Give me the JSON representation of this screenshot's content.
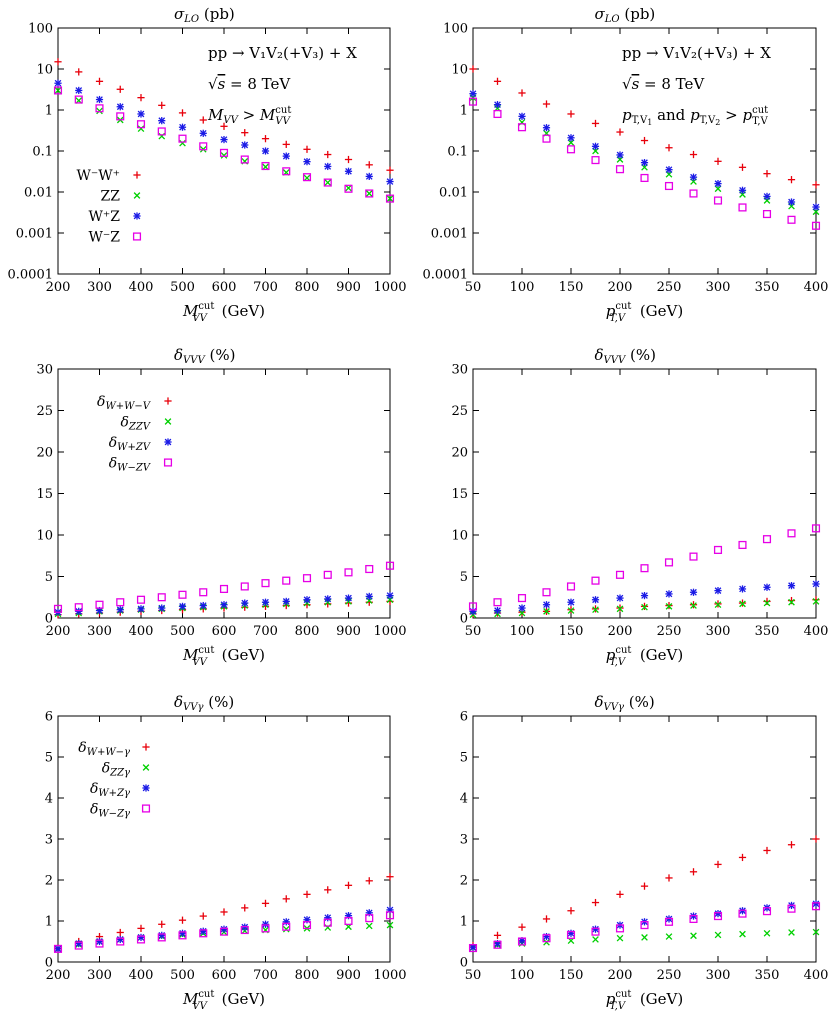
{
  "figure": {
    "background": "#ffffff",
    "colors": {
      "WW": "#e8000b",
      "ZZ": "#00d000",
      "WZp": "#1a1ae6",
      "WZm": "#e600e6"
    }
  },
  "chart_data": [
    {
      "id": "p1",
      "type": "scatter",
      "yscale": "log",
      "title_sym": "σ",
      "title_sub": "LO",
      "title_unit": "(pb)",
      "xlabel": "M",
      "xlabel_sub": "VV",
      "xlabel_sup": "cut",
      "xlabel_unit": "(GeV)",
      "xlim": [
        200,
        1000
      ],
      "ylim": [
        0.0001,
        100
      ],
      "xticks": [
        200,
        300,
        400,
        500,
        600,
        700,
        800,
        900,
        1000
      ],
      "xtick_labels": [
        "200",
        "300",
        "400",
        "500",
        "600",
        "700",
        "800",
        "900",
        "1000"
      ],
      "yticks": [
        0.0001,
        0.001,
        0.01,
        0.1,
        1,
        10,
        100
      ],
      "ytick_labels": [
        "0.0001",
        "0.001",
        "0.01",
        "0.1",
        "1",
        "10",
        "100"
      ],
      "annotations": [
        "pp → V₁V₂(+V₃) + X",
        "√s = 8 TeV",
        "M_VV > M_VV^cut"
      ],
      "legend": [
        "W⁻W⁺",
        "ZZ",
        "W⁺Z",
        "W⁻Z"
      ],
      "x": [
        200,
        250,
        300,
        350,
        400,
        450,
        500,
        550,
        600,
        650,
        700,
        750,
        800,
        850,
        900,
        950,
        1000
      ],
      "series": [
        {
          "name": "W⁻W⁺",
          "marker": "plus",
          "color": "#e8000b",
          "values": [
            15,
            8.5,
            5,
            3.2,
            2,
            1.3,
            0.85,
            0.57,
            0.4,
            0.28,
            0.2,
            0.145,
            0.11,
            0.082,
            0.062,
            0.046,
            0.034
          ]
        },
        {
          "name": "ZZ",
          "marker": "x",
          "color": "#00d000",
          "values": [
            3,
            1.7,
            0.95,
            0.57,
            0.35,
            0.23,
            0.155,
            0.11,
            0.078,
            0.056,
            0.041,
            0.03,
            0.022,
            0.017,
            0.0125,
            0.0092,
            0.0069
          ]
        },
        {
          "name": "W⁺Z",
          "marker": "star",
          "color": "#1a1ae6",
          "values": [
            4.5,
            3,
            1.8,
            1.2,
            0.8,
            0.55,
            0.38,
            0.27,
            0.19,
            0.14,
            0.1,
            0.075,
            0.055,
            0.042,
            0.032,
            0.024,
            0.018
          ]
        },
        {
          "name": "W⁻Z",
          "marker": "square",
          "color": "#e600e6",
          "values": [
            3,
            1.8,
            1.1,
            0.7,
            0.45,
            0.3,
            0.2,
            0.13,
            0.09,
            0.062,
            0.043,
            0.032,
            0.023,
            0.017,
            0.012,
            0.0092,
            0.0069
          ]
        }
      ]
    },
    {
      "id": "p2",
      "type": "scatter",
      "yscale": "log",
      "title_sym": "σ",
      "title_sub": "LO",
      "title_unit": "(pb)",
      "xlabel": "p",
      "xlabel_sub": "T,V",
      "xlabel_sup": "cut",
      "xlabel_unit": "(GeV)",
      "xlim": [
        50,
        400
      ],
      "ylim": [
        0.0001,
        100
      ],
      "xticks": [
        50,
        100,
        150,
        200,
        250,
        300,
        350,
        400
      ],
      "xtick_labels": [
        "50",
        "100",
        "150",
        "200",
        "250",
        "300",
        "350",
        "400"
      ],
      "yticks": [
        0.0001,
        0.001,
        0.01,
        0.1,
        1,
        10,
        100
      ],
      "ytick_labels": [
        "0.0001",
        "0.001",
        "0.01",
        "0.1",
        "1",
        "10",
        "100"
      ],
      "annotations": [
        "pp → V₁V₂(+V₃) + X",
        "√s = 8 TeV",
        "p_T,V1 and p_T,V2 > p_T,V^cut"
      ],
      "legend": [],
      "x": [
        50,
        75,
        100,
        125,
        150,
        175,
        200,
        225,
        250,
        275,
        300,
        325,
        350,
        375,
        400
      ],
      "series": [
        {
          "name": "W⁻W⁺",
          "marker": "plus",
          "color": "#e8000b",
          "values": [
            10,
            5,
            2.6,
            1.4,
            0.8,
            0.47,
            0.29,
            0.18,
            0.12,
            0.082,
            0.056,
            0.04,
            0.028,
            0.02,
            0.015
          ]
        },
        {
          "name": "ZZ",
          "marker": "x",
          "color": "#00d000",
          "values": [
            2,
            1.1,
            0.5,
            0.27,
            0.16,
            0.1,
            0.062,
            0.04,
            0.027,
            0.018,
            0.012,
            0.0087,
            0.0062,
            0.0045,
            0.0033
          ]
        },
        {
          "name": "W⁺Z",
          "marker": "star",
          "color": "#1a1ae6",
          "values": [
            2.5,
            1.35,
            0.7,
            0.37,
            0.21,
            0.13,
            0.08,
            0.052,
            0.035,
            0.023,
            0.016,
            0.011,
            0.0078,
            0.0057,
            0.0043
          ]
        },
        {
          "name": "W⁻Z",
          "marker": "square",
          "color": "#e600e6",
          "values": [
            1.6,
            0.8,
            0.38,
            0.2,
            0.11,
            0.06,
            0.036,
            0.022,
            0.014,
            0.0092,
            0.0062,
            0.0042,
            0.0029,
            0.0021,
            0.0015
          ]
        }
      ]
    },
    {
      "id": "p3",
      "type": "scatter",
      "yscale": "linear",
      "title_sym": "δ",
      "title_sub": "VVV",
      "title_unit": "(%)",
      "xlabel": "M",
      "xlabel_sub": "VV",
      "xlabel_sup": "cut",
      "xlabel_unit": "(GeV)",
      "xlim": [
        200,
        1000
      ],
      "ylim": [
        0,
        30
      ],
      "xticks": [
        200,
        300,
        400,
        500,
        600,
        700,
        800,
        900,
        1000
      ],
      "xtick_labels": [
        "200",
        "300",
        "400",
        "500",
        "600",
        "700",
        "800",
        "900",
        "1000"
      ],
      "yticks": [
        0,
        5,
        10,
        15,
        20,
        25,
        30
      ],
      "ytick_labels": [
        "0",
        "5",
        "10",
        "15",
        "20",
        "25",
        "30"
      ],
      "annotations": [],
      "legend": [
        "δ_W+W−V",
        "δ_ZZV",
        "δ_W+ZV",
        "δ_W−ZV"
      ],
      "x": [
        200,
        250,
        300,
        350,
        400,
        450,
        500,
        550,
        600,
        650,
        700,
        750,
        800,
        850,
        900,
        950,
        1000
      ],
      "series": [
        {
          "name": "δ_W+W−V",
          "marker": "plus",
          "color": "#e8000b",
          "values": [
            0.4,
            0.5,
            0.6,
            0.7,
            0.8,
            0.9,
            1.0,
            1.1,
            1.2,
            1.3,
            1.4,
            1.5,
            1.6,
            1.7,
            1.8,
            1.9,
            2.0
          ]
        },
        {
          "name": "δ_ZZV",
          "marker": "x",
          "color": "#00d000",
          "values": [
            0.5,
            0.6,
            0.8,
            0.9,
            1.0,
            1.1,
            1.2,
            1.3,
            1.4,
            1.5,
            1.6,
            1.7,
            1.8,
            1.9,
            2.0,
            2.1,
            2.2
          ]
        },
        {
          "name": "δ_W+ZV",
          "marker": "star",
          "color": "#1a1ae6",
          "values": [
            0.7,
            0.8,
            0.9,
            1.0,
            1.1,
            1.2,
            1.4,
            1.5,
            1.6,
            1.8,
            1.9,
            2.0,
            2.2,
            2.3,
            2.4,
            2.6,
            2.7
          ]
        },
        {
          "name": "δ_W−ZV",
          "marker": "square",
          "color": "#e600e6",
          "values": [
            1.1,
            1.3,
            1.6,
            1.9,
            2.2,
            2.5,
            2.8,
            3.1,
            3.5,
            3.8,
            4.2,
            4.5,
            4.8,
            5.2,
            5.5,
            5.9,
            6.3
          ]
        }
      ]
    },
    {
      "id": "p4",
      "type": "scatter",
      "yscale": "linear",
      "title_sym": "δ",
      "title_sub": "VVV",
      "title_unit": "(%)",
      "xlabel": "p",
      "xlabel_sub": "T,V",
      "xlabel_sup": "cut",
      "xlabel_unit": "(GeV)",
      "xlim": [
        50,
        400
      ],
      "ylim": [
        0,
        30
      ],
      "xticks": [
        50,
        100,
        150,
        200,
        250,
        300,
        350,
        400
      ],
      "xtick_labels": [
        "50",
        "100",
        "150",
        "200",
        "250",
        "300",
        "350",
        "400"
      ],
      "yticks": [
        0,
        5,
        10,
        15,
        20,
        25,
        30
      ],
      "ytick_labels": [
        "0",
        "5",
        "10",
        "15",
        "20",
        "25",
        "30"
      ],
      "annotations": [],
      "legend": [],
      "x": [
        50,
        75,
        100,
        125,
        150,
        175,
        200,
        225,
        250,
        275,
        300,
        325,
        350,
        375,
        400
      ],
      "series": [
        {
          "name": "δ_W+W−V",
          "marker": "plus",
          "color": "#e8000b",
          "values": [
            0.5,
            0.6,
            0.7,
            0.8,
            1.0,
            1.1,
            1.2,
            1.4,
            1.5,
            1.6,
            1.7,
            1.8,
            2.0,
            2.1,
            2.2
          ]
        },
        {
          "name": "δ_ZZV",
          "marker": "x",
          "color": "#00d000",
          "values": [
            0.4,
            0.5,
            0.6,
            0.8,
            0.9,
            1.0,
            1.1,
            1.3,
            1.4,
            1.5,
            1.6,
            1.7,
            1.8,
            1.9,
            2.0
          ]
        },
        {
          "name": "δ_W+ZV",
          "marker": "star",
          "color": "#1a1ae6",
          "values": [
            0.8,
            0.9,
            1.2,
            1.6,
            1.9,
            2.2,
            2.4,
            2.7,
            2.9,
            3.1,
            3.3,
            3.5,
            3.7,
            3.9,
            4.1
          ]
        },
        {
          "name": "δ_W−ZV",
          "marker": "square",
          "color": "#e600e6",
          "values": [
            1.4,
            1.9,
            2.4,
            3.1,
            3.8,
            4.5,
            5.2,
            6.0,
            6.7,
            7.4,
            8.2,
            8.8,
            9.5,
            10.2,
            10.8
          ]
        }
      ]
    },
    {
      "id": "p5",
      "type": "scatter",
      "yscale": "linear",
      "title_sym": "δ",
      "title_sub": "VVγ",
      "title_unit": "(%)",
      "xlabel": "M",
      "xlabel_sub": "VV",
      "xlabel_sup": "cut",
      "xlabel_unit": "(GeV)",
      "xlim": [
        200,
        1000
      ],
      "ylim": [
        0,
        6
      ],
      "xticks": [
        200,
        300,
        400,
        500,
        600,
        700,
        800,
        900,
        1000
      ],
      "xtick_labels": [
        "200",
        "300",
        "400",
        "500",
        "600",
        "700",
        "800",
        "900",
        "1000"
      ],
      "yticks": [
        0,
        1,
        2,
        3,
        4,
        5,
        6
      ],
      "ytick_labels": [
        "0",
        "1",
        "2",
        "3",
        "4",
        "5",
        "6"
      ],
      "annotations": [],
      "legend": [
        "δ_W+W−γ",
        "δ_ZZγ",
        "δ_W+Zγ",
        "δ_W−Zγ"
      ],
      "x": [
        200,
        250,
        300,
        350,
        400,
        450,
        500,
        550,
        600,
        650,
        700,
        750,
        800,
        850,
        900,
        950,
        1000
      ],
      "series": [
        {
          "name": "δ_W+W−γ",
          "marker": "plus",
          "color": "#e8000b",
          "values": [
            0.33,
            0.5,
            0.62,
            0.72,
            0.82,
            0.92,
            1.02,
            1.12,
            1.22,
            1.32,
            1.43,
            1.54,
            1.65,
            1.76,
            1.87,
            1.98,
            2.08
          ]
        },
        {
          "name": "δ_ZZγ",
          "marker": "x",
          "color": "#00d000",
          "values": [
            0.32,
            0.43,
            0.5,
            0.55,
            0.6,
            0.63,
            0.67,
            0.7,
            0.73,
            0.76,
            0.78,
            0.8,
            0.82,
            0.84,
            0.86,
            0.88,
            0.9
          ]
        },
        {
          "name": "δ_W+Zγ",
          "marker": "star",
          "color": "#1a1ae6",
          "values": [
            0.32,
            0.45,
            0.5,
            0.55,
            0.6,
            0.65,
            0.7,
            0.75,
            0.8,
            0.85,
            0.92,
            0.98,
            1.03,
            1.08,
            1.13,
            1.2,
            1.27
          ]
        },
        {
          "name": "δ_W−Zγ",
          "marker": "square",
          "color": "#e600e6",
          "values": [
            0.32,
            0.4,
            0.45,
            0.5,
            0.55,
            0.6,
            0.65,
            0.7,
            0.74,
            0.78,
            0.82,
            0.86,
            0.9,
            0.96,
            1.0,
            1.07,
            1.14
          ]
        }
      ]
    },
    {
      "id": "p6",
      "type": "scatter",
      "yscale": "linear",
      "title_sym": "δ",
      "title_sub": "VVγ",
      "title_unit": "(%)",
      "xlabel": "p",
      "xlabel_sub": "T,V",
      "xlabel_sup": "cut",
      "xlabel_unit": "(GeV)",
      "xlim": [
        50,
        400
      ],
      "ylim": [
        0,
        6
      ],
      "xticks": [
        50,
        100,
        150,
        200,
        250,
        300,
        350,
        400
      ],
      "xtick_labels": [
        "50",
        "100",
        "150",
        "200",
        "250",
        "300",
        "350",
        "400"
      ],
      "yticks": [
        0,
        1,
        2,
        3,
        4,
        5,
        6
      ],
      "ytick_labels": [
        "0",
        "1",
        "2",
        "3",
        "4",
        "5",
        "6"
      ],
      "annotations": [],
      "legend": [],
      "x": [
        50,
        75,
        100,
        125,
        150,
        175,
        200,
        225,
        250,
        275,
        300,
        325,
        350,
        375,
        400
      ],
      "series": [
        {
          "name": "δ_W+W−γ",
          "marker": "plus",
          "color": "#e8000b",
          "values": [
            0.4,
            0.65,
            0.85,
            1.05,
            1.25,
            1.45,
            1.65,
            1.85,
            2.05,
            2.2,
            2.38,
            2.55,
            2.72,
            2.86,
            3.0
          ]
        },
        {
          "name": "δ_ZZγ",
          "marker": "x",
          "color": "#00d000",
          "values": [
            0.35,
            0.42,
            0.45,
            0.48,
            0.52,
            0.55,
            0.58,
            0.6,
            0.62,
            0.64,
            0.66,
            0.68,
            0.7,
            0.72,
            0.73
          ]
        },
        {
          "name": "δ_W+Zγ",
          "marker": "star",
          "color": "#1a1ae6",
          "values": [
            0.36,
            0.45,
            0.52,
            0.62,
            0.7,
            0.8,
            0.9,
            0.98,
            1.05,
            1.12,
            1.18,
            1.25,
            1.32,
            1.38,
            1.42
          ]
        },
        {
          "name": "δ_W−Zγ",
          "marker": "square",
          "color": "#e600e6",
          "values": [
            0.34,
            0.42,
            0.5,
            0.58,
            0.66,
            0.74,
            0.82,
            0.9,
            0.98,
            1.05,
            1.12,
            1.18,
            1.24,
            1.3,
            1.36
          ]
        }
      ]
    }
  ]
}
